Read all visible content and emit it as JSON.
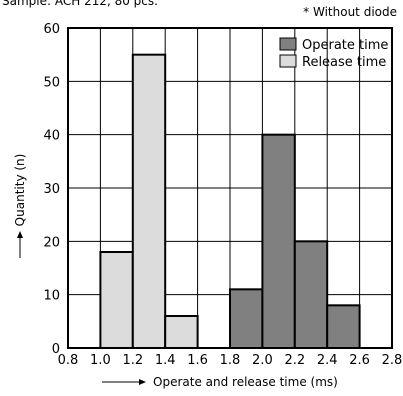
{
  "header": {
    "sample_text": "Sample: ACH 212, 80 pcs.",
    "note_text": "* Without diode"
  },
  "chart_data": {
    "type": "bar",
    "title": "",
    "xlabel": "Operate and release time (ms)",
    "ylabel": "Quantity (n)",
    "xlim": [
      0.8,
      2.8
    ],
    "ylim": [
      0,
      60
    ],
    "xticks": [
      "0.8",
      "1.0",
      "1.2",
      "1.4",
      "1.6",
      "1.8",
      "2.0",
      "2.2",
      "2.4",
      "2.6",
      "2.8"
    ],
    "yticks": [
      "0",
      "10",
      "20",
      "30",
      "40",
      "50",
      "60"
    ],
    "grid": true,
    "legend_position": "top-right",
    "series": [
      {
        "name": "Operate time",
        "color": "#808080",
        "bins": [
          {
            "from": 1.8,
            "to": 2.0,
            "value": 11
          },
          {
            "from": 2.0,
            "to": 2.2,
            "value": 40
          },
          {
            "from": 2.2,
            "to": 2.4,
            "value": 20
          },
          {
            "from": 2.4,
            "to": 2.6,
            "value": 8
          }
        ]
      },
      {
        "name": "Release time",
        "color": "#dcdcdc",
        "bins": [
          {
            "from": 1.0,
            "to": 1.2,
            "value": 18
          },
          {
            "from": 1.2,
            "to": 1.4,
            "value": 55
          },
          {
            "from": 1.4,
            "to": 1.6,
            "value": 6
          }
        ]
      }
    ]
  }
}
